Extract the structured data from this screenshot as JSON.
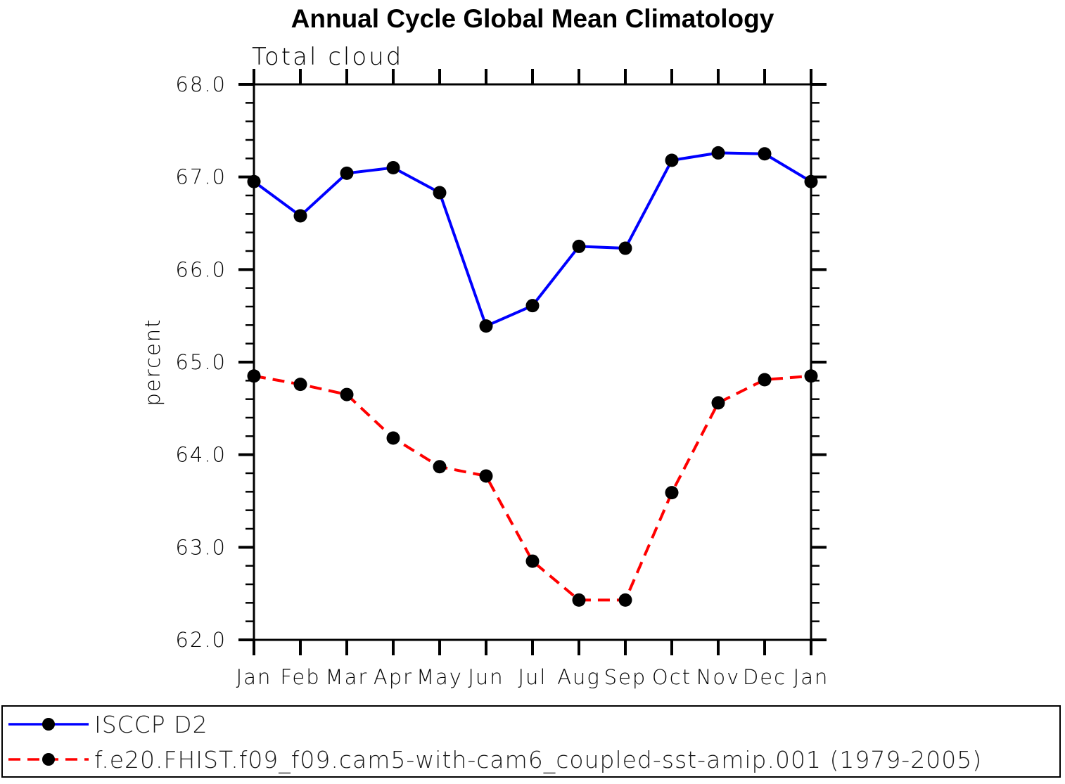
{
  "chart_data": {
    "type": "line",
    "title": "Annual Cycle Global Mean Climatology",
    "subtitle": "Total cloud",
    "xlabel": "",
    "ylabel": "percent",
    "ylim": [
      62.0,
      68.0
    ],
    "ytick_major_step": 1.0,
    "ytick_minor_step": 0.2,
    "ytick_labels": [
      "68.0",
      "67.0",
      "66.0",
      "65.0",
      "64.0",
      "63.0",
      "62.0"
    ],
    "categories": [
      "Jan",
      "Feb",
      "Mar",
      "Apr",
      "May",
      "Jun",
      "Jul",
      "Aug",
      "Sep",
      "Oct",
      "Nov",
      "Dec",
      "Jan"
    ],
    "grid": false,
    "background_color": "#ffffff",
    "axis_color": "#000000",
    "marker_color": "#000000",
    "legend_position": "bottom",
    "series": [
      {
        "name": "ISCCP D2",
        "color": "#0000ff",
        "line_style": "solid",
        "marker": "filled-circle",
        "values": [
          66.95,
          66.58,
          67.04,
          67.1,
          66.83,
          65.39,
          65.61,
          66.25,
          66.23,
          67.18,
          67.26,
          67.25,
          66.95
        ]
      },
      {
        "name": "f.e20.FHIST.f09_f09.cam5-with-cam6_coupled-sst-amip.001 (1979-2005)",
        "color": "#ff0000",
        "line_style": "dashed",
        "marker": "filled-circle",
        "values": [
          64.85,
          64.76,
          64.65,
          64.18,
          63.87,
          63.77,
          62.85,
          62.43,
          62.43,
          63.59,
          64.56,
          64.81,
          64.85
        ]
      }
    ]
  }
}
